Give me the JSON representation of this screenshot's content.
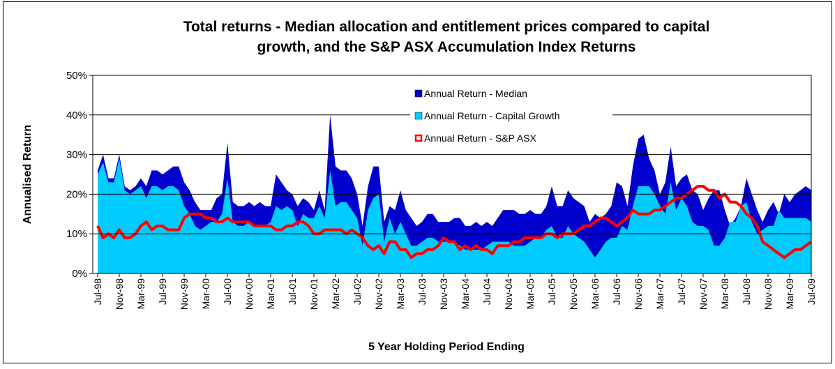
{
  "chart_data": {
    "type": "area",
    "title": [
      "Total returns - Median allocation and entitlement prices compared to capital",
      "growth, and the S&P ASX Accumulation Index Returns"
    ],
    "y_label": "Annualised Return",
    "x_label": "5 Year Holding Period Ending",
    "categories": [
      "Jul-98",
      null,
      null,
      null,
      "Nov-98",
      null,
      null,
      null,
      "Mar-99",
      null,
      null,
      null,
      "Jul-99",
      null,
      null,
      null,
      "Nov-99",
      null,
      null,
      null,
      "Mar-00",
      null,
      null,
      null,
      "Jul-00",
      null,
      null,
      null,
      "Nov-00",
      null,
      null,
      null,
      "Mar-01",
      null,
      null,
      null,
      "Jul-01",
      null,
      null,
      null,
      "Nov-01",
      null,
      null,
      null,
      "Mar-02",
      null,
      null,
      null,
      "Jul-02",
      null,
      null,
      null,
      "Nov-02",
      null,
      null,
      null,
      "Mar-03",
      null,
      null,
      null,
      "Jul-03",
      null,
      null,
      null,
      "Nov-03",
      null,
      null,
      null,
      "Mar-04",
      null,
      null,
      null,
      "Jul-04",
      null,
      null,
      null,
      "Nov-04",
      null,
      null,
      null,
      "Mar-05",
      null,
      null,
      null,
      "Jul-05",
      null,
      null,
      null,
      "Nov-05",
      null,
      null,
      null,
      "Mar-06",
      null,
      null,
      null,
      "Jul-06",
      null,
      null,
      null,
      "Nov-06",
      null,
      null,
      null,
      "Mar-07",
      null,
      null,
      null,
      "Jul-07",
      null,
      null,
      null,
      "Nov-07",
      null,
      null,
      null,
      "Mar-08",
      null,
      null,
      null,
      "Jul-08",
      null,
      null,
      null,
      "Nov-08",
      null,
      null,
      null,
      "Mar-09",
      null,
      null,
      null,
      "Jul-09"
    ],
    "series": [
      {
        "name": "Annual Return - Median",
        "color": "#0000cc",
        "kind": "area",
        "values": [
          26,
          30,
          24,
          24,
          30,
          22,
          21,
          22,
          24,
          22,
          26,
          26,
          25,
          26,
          27,
          27,
          23,
          21,
          18,
          16,
          16,
          16,
          19,
          20,
          33,
          18,
          17,
          17,
          18,
          17,
          18,
          17,
          17,
          25,
          23,
          21,
          20,
          17,
          19,
          18,
          16,
          21,
          16,
          40,
          27,
          26,
          26,
          24,
          20,
          12,
          22,
          27,
          27,
          13,
          17,
          16,
          21,
          16,
          14,
          12,
          13,
          15,
          15,
          13,
          13,
          13,
          14,
          14,
          12,
          12,
          13,
          12,
          13,
          12,
          14,
          16,
          16,
          16,
          15,
          15,
          16,
          15,
          15,
          17,
          22,
          17,
          17,
          21,
          19,
          18,
          17,
          13,
          15,
          14,
          15,
          17,
          23,
          22,
          17,
          27,
          34,
          35,
          29,
          26,
          20,
          23,
          32,
          22,
          24,
          25,
          21,
          20,
          16,
          19,
          21,
          21,
          16,
          12,
          14,
          17,
          24,
          20,
          16,
          13,
          16,
          18,
          15,
          20,
          18,
          20,
          21,
          22,
          21
        ]
      },
      {
        "name": "Annual Return - Capital Growth",
        "color": "#00ccff",
        "kind": "area",
        "values": [
          25,
          28,
          23,
          23,
          29,
          21,
          20,
          21,
          22,
          19,
          22,
          22,
          21,
          22,
          22,
          21,
          17,
          15,
          12,
          11,
          12,
          13,
          13,
          15,
          24,
          13,
          12,
          12,
          13,
          12,
          12,
          12,
          13,
          17,
          16,
          17,
          16,
          12,
          15,
          14,
          14,
          17,
          14,
          26,
          17,
          18,
          18,
          16,
          14,
          7,
          16,
          19,
          20,
          8,
          14,
          10,
          13,
          10,
          7,
          7,
          8,
          9,
          9,
          8,
          8,
          8,
          8,
          7,
          6,
          6,
          6,
          6,
          7,
          8,
          8,
          8,
          8,
          7,
          7,
          7,
          8,
          9,
          9,
          11,
          12,
          9,
          9,
          12,
          10,
          9,
          8,
          6,
          4,
          6,
          8,
          9,
          9,
          12,
          11,
          17,
          22,
          22,
          22,
          20,
          17,
          15,
          23,
          16,
          19,
          17,
          13,
          12,
          12,
          11,
          7,
          7,
          9,
          13,
          13,
          17,
          18,
          13,
          10,
          11,
          12,
          12,
          16,
          14,
          14,
          14,
          14,
          14,
          13
        ]
      },
      {
        "name": "Annual Return - S&P ASX",
        "color": "#ff0000",
        "kind": "line",
        "values": [
          12,
          9,
          10,
          9,
          11,
          9,
          9,
          10,
          12,
          13,
          11,
          12,
          12,
          11,
          11,
          11,
          14,
          15,
          15,
          15,
          14,
          14,
          13,
          13,
          14,
          13,
          13,
          13,
          13,
          12,
          12,
          12,
          12,
          11,
          11,
          12,
          12,
          13,
          13,
          12,
          10,
          10,
          11,
          11,
          11,
          11,
          10,
          11,
          10,
          9,
          7,
          6,
          7,
          5,
          8,
          8,
          6,
          6,
          4,
          5,
          5,
          6,
          6,
          7,
          9,
          8,
          8,
          6,
          7,
          6,
          7,
          6,
          6,
          5,
          7,
          7,
          7,
          8,
          8,
          9,
          9,
          9,
          9,
          10,
          10,
          9,
          10,
          10,
          10,
          11,
          12,
          12,
          13,
          14,
          14,
          13,
          12,
          13,
          14,
          16,
          15,
          15,
          15,
          16,
          16,
          17,
          18,
          19,
          19,
          20,
          21,
          22,
          22,
          21,
          21,
          19,
          20,
          18,
          18,
          17,
          15,
          14,
          12,
          8,
          7,
          6,
          5,
          4,
          5,
          6,
          6,
          7,
          8
        ]
      }
    ],
    "ylim": [
      0,
      50
    ],
    "yticks": [
      {
        "value": 0,
        "label": "0%"
      },
      {
        "value": 10,
        "label": "10%"
      },
      {
        "value": 20,
        "label": "20%"
      },
      {
        "value": 30,
        "label": "30%"
      },
      {
        "value": 40,
        "label": "40%"
      },
      {
        "value": 50,
        "label": "50%"
      }
    ],
    "grid": true,
    "legend": "top"
  }
}
